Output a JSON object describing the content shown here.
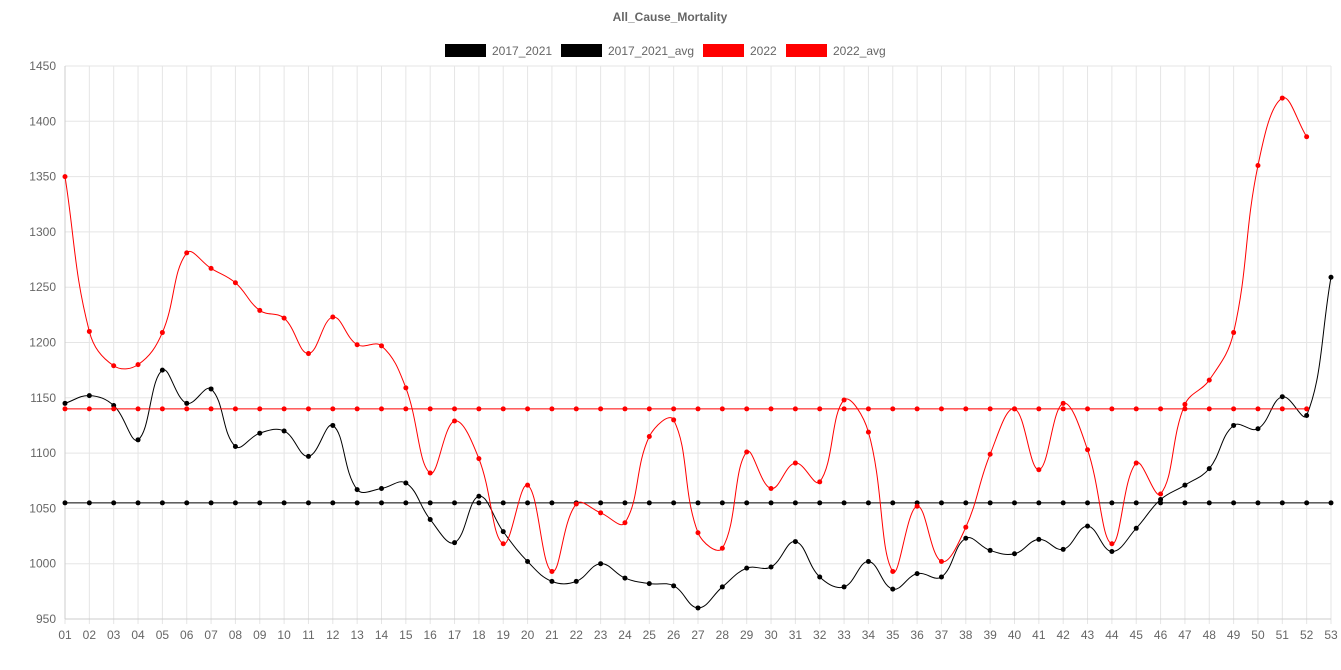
{
  "chart_data": {
    "type": "line",
    "title": "All_Cause_Mortality",
    "legend_position": "top",
    "grid": true,
    "ylim": [
      950,
      1450
    ],
    "yticks": [
      950,
      1000,
      1050,
      1100,
      1150,
      1200,
      1250,
      1300,
      1350,
      1400,
      1450
    ],
    "categories": [
      "01",
      "02",
      "03",
      "04",
      "05",
      "06",
      "07",
      "08",
      "09",
      "10",
      "11",
      "12",
      "13",
      "14",
      "15",
      "16",
      "17",
      "18",
      "19",
      "20",
      "21",
      "22",
      "23",
      "24",
      "25",
      "26",
      "27",
      "28",
      "29",
      "30",
      "31",
      "32",
      "33",
      "34",
      "35",
      "36",
      "37",
      "38",
      "39",
      "40",
      "41",
      "42",
      "43",
      "44",
      "45",
      "46",
      "47",
      "48",
      "49",
      "50",
      "51",
      "52",
      "53"
    ],
    "series": [
      {
        "name": "2017_2021",
        "color": "#000000",
        "values": [
          1145,
          1152,
          1143,
          1112,
          1175,
          1145,
          1158,
          1106,
          1118,
          1120,
          1097,
          1125,
          1067,
          1068,
          1073,
          1040,
          1019,
          1061,
          1029,
          1002,
          984,
          984,
          1000,
          987,
          982,
          980,
          960,
          979,
          996,
          997,
          1020,
          988,
          979,
          1002,
          977,
          991,
          988,
          1023,
          1012,
          1009,
          1022,
          1013,
          1034,
          1011,
          1032,
          1058,
          1071,
          1086,
          1125,
          1122,
          1151,
          1134,
          1259
        ]
      },
      {
        "name": "2017_2021_avg",
        "color": "#000000",
        "values": [
          1055,
          1055,
          1055,
          1055,
          1055,
          1055,
          1055,
          1055,
          1055,
          1055,
          1055,
          1055,
          1055,
          1055,
          1055,
          1055,
          1055,
          1055,
          1055,
          1055,
          1055,
          1055,
          1055,
          1055,
          1055,
          1055,
          1055,
          1055,
          1055,
          1055,
          1055,
          1055,
          1055,
          1055,
          1055,
          1055,
          1055,
          1055,
          1055,
          1055,
          1055,
          1055,
          1055,
          1055,
          1055,
          1055,
          1055,
          1055,
          1055,
          1055,
          1055,
          1055,
          1055
        ]
      },
      {
        "name": "2022",
        "color": "#ff0000",
        "values": [
          1350,
          1210,
          1179,
          1180,
          1209,
          1281,
          1267,
          1254,
          1229,
          1222,
          1190,
          1223,
          1198,
          1197,
          1159,
          1082,
          1129,
          1095,
          1018,
          1071,
          993,
          1054,
          1046,
          1037,
          1115,
          1130,
          1028,
          1014,
          1101,
          1068,
          1091,
          1074,
          1148,
          1119,
          993,
          1052,
          1002,
          1033,
          1099,
          1140,
          1085,
          1145,
          1103,
          1018,
          1091,
          1063,
          1144,
          1166,
          1209,
          1360,
          1421,
          1386,
          null
        ]
      },
      {
        "name": "2022_avg",
        "color": "#ff0000",
        "values": [
          1140,
          1140,
          1140,
          1140,
          1140,
          1140,
          1140,
          1140,
          1140,
          1140,
          1140,
          1140,
          1140,
          1140,
          1140,
          1140,
          1140,
          1140,
          1140,
          1140,
          1140,
          1140,
          1140,
          1140,
          1140,
          1140,
          1140,
          1140,
          1140,
          1140,
          1140,
          1140,
          1140,
          1140,
          1140,
          1140,
          1140,
          1140,
          1140,
          1140,
          1140,
          1140,
          1140,
          1140,
          1140,
          1140,
          1140,
          1140,
          1140,
          1140,
          1140,
          1140,
          null
        ]
      }
    ]
  }
}
